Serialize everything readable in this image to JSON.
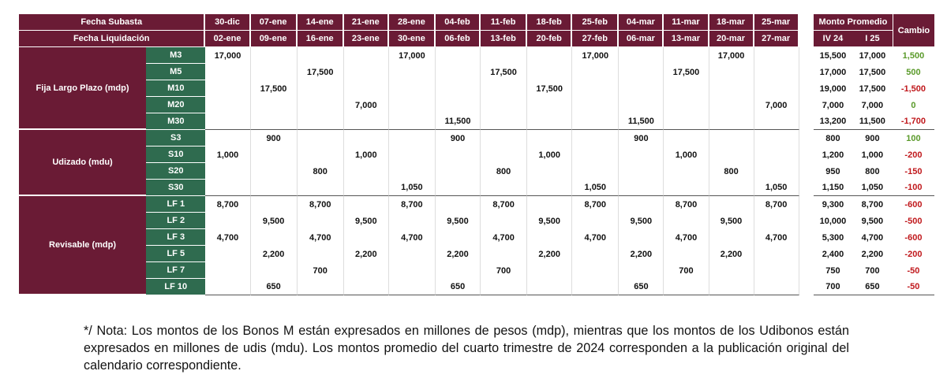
{
  "header": {
    "row1_label": "Fecha Subasta",
    "row2_label": "Fecha Liquidación",
    "auction_dates": [
      "30-dic",
      "07-ene",
      "14-ene",
      "21-ene",
      "28-ene",
      "04-feb",
      "11-feb",
      "18-feb",
      "25-feb",
      "04-mar",
      "11-mar",
      "18-mar",
      "25-mar"
    ],
    "settlement_dates": [
      "02-ene",
      "09-ene",
      "16-ene",
      "23-ene",
      "30-ene",
      "06-feb",
      "13-feb",
      "20-feb",
      "27-feb",
      "06-mar",
      "13-mar",
      "20-mar",
      "27-mar"
    ],
    "avg_label": "Monto Promedio",
    "avg_cols": [
      "IV 24",
      "I 25"
    ],
    "change_label": "Cambio"
  },
  "groups": [
    {
      "label": "Fija Largo Plazo (mdp)",
      "rows": [
        {
          "code": "M3",
          "values": [
            "17,000",
            "",
            "",
            "",
            "17,000",
            "",
            "",
            "",
            "17,000",
            "",
            "",
            "17,000",
            ""
          ],
          "avg": [
            "15,500",
            "17,000"
          ],
          "change": "1,500",
          "sign": "pos"
        },
        {
          "code": "M5",
          "values": [
            "",
            "",
            "17,500",
            "",
            "",
            "",
            "17,500",
            "",
            "",
            "",
            "17,500",
            "",
            ""
          ],
          "avg": [
            "17,000",
            "17,500"
          ],
          "change": "500",
          "sign": "pos"
        },
        {
          "code": "M10",
          "values": [
            "",
            "17,500",
            "",
            "",
            "",
            "",
            "",
            "17,500",
            "",
            "",
            "",
            "",
            ""
          ],
          "avg": [
            "19,000",
            "17,500"
          ],
          "change": "-1,500",
          "sign": "neg"
        },
        {
          "code": "M20",
          "values": [
            "",
            "",
            "",
            "7,000",
            "",
            "",
            "",
            "",
            "",
            "",
            "",
            "",
            "7,000"
          ],
          "avg": [
            "7,000",
            "7,000"
          ],
          "change": "0",
          "sign": "pos"
        },
        {
          "code": "M30",
          "values": [
            "",
            "",
            "",
            "",
            "",
            "11,500",
            "",
            "",
            "",
            "11,500",
            "",
            "",
            ""
          ],
          "avg": [
            "13,200",
            "11,500"
          ],
          "change": "-1,700",
          "sign": "neg"
        }
      ]
    },
    {
      "label": "Udizado  (mdu)",
      "rows": [
        {
          "code": "S3",
          "values": [
            "",
            "900",
            "",
            "",
            "",
            "900",
            "",
            "",
            "",
            "900",
            "",
            "",
            ""
          ],
          "avg": [
            "800",
            "900"
          ],
          "change": "100",
          "sign": "pos"
        },
        {
          "code": "S10",
          "values": [
            "1,000",
            "",
            "",
            "1,000",
            "",
            "",
            "",
            "1,000",
            "",
            "",
            "1,000",
            "",
            ""
          ],
          "avg": [
            "1,200",
            "1,000"
          ],
          "change": "-200",
          "sign": "neg"
        },
        {
          "code": "S20",
          "values": [
            "",
            "",
            "800",
            "",
            "",
            "",
            "800",
            "",
            "",
            "",
            "",
            "800",
            ""
          ],
          "avg": [
            "950",
            "800"
          ],
          "change": "-150",
          "sign": "neg"
        },
        {
          "code": "S30",
          "values": [
            "",
            "",
            "",
            "",
            "1,050",
            "",
            "",
            "",
            "1,050",
            "",
            "",
            "",
            "1,050"
          ],
          "avg": [
            "1,150",
            "1,050"
          ],
          "change": "-100",
          "sign": "neg"
        }
      ]
    },
    {
      "label": "Revisable  (mdp)",
      "rows": [
        {
          "code": "LF 1",
          "values": [
            "8,700",
            "",
            "8,700",
            "",
            "8,700",
            "",
            "8,700",
            "",
            "8,700",
            "",
            "8,700",
            "",
            "8,700"
          ],
          "avg": [
            "9,300",
            "8,700"
          ],
          "change": "-600",
          "sign": "neg"
        },
        {
          "code": "LF 2",
          "values": [
            "",
            "9,500",
            "",
            "9,500",
            "",
            "9,500",
            "",
            "9,500",
            "",
            "9,500",
            "",
            "9,500",
            ""
          ],
          "avg": [
            "10,000",
            "9,500"
          ],
          "change": "-500",
          "sign": "neg"
        },
        {
          "code": "LF 3",
          "values": [
            "4,700",
            "",
            "4,700",
            "",
            "4,700",
            "",
            "4,700",
            "",
            "4,700",
            "",
            "4,700",
            "",
            "4,700"
          ],
          "avg": [
            "5,300",
            "4,700"
          ],
          "change": "-600",
          "sign": "neg"
        },
        {
          "code": "LF 5",
          "values": [
            "",
            "2,200",
            "",
            "2,200",
            "",
            "2,200",
            "",
            "2,200",
            "",
            "2,200",
            "",
            "2,200",
            ""
          ],
          "avg": [
            "2,400",
            "2,200"
          ],
          "change": "-200",
          "sign": "neg"
        },
        {
          "code": "LF 7",
          "values": [
            "",
            "",
            "700",
            "",
            "",
            "",
            "700",
            "",
            "",
            "",
            "700",
            "",
            ""
          ],
          "avg": [
            "750",
            "700"
          ],
          "change": "-50",
          "sign": "neg"
        },
        {
          "code": "LF 10",
          "values": [
            "",
            "650",
            "",
            "",
            "",
            "650",
            "",
            "",
            "",
            "650",
            "",
            "",
            ""
          ],
          "avg": [
            "700",
            "650"
          ],
          "change": "-50",
          "sign": "neg"
        }
      ]
    }
  ],
  "note": "*/ Nota: Los montos de los Bonos M están expresados en millones de pesos (mdp), mientras que los montos de los Udibonos están expresados en millones de udis (mdu).  Los montos promedio del cuarto trimestre de 2024 corresponden a la publicación original del calendario correspondiente.",
  "colors": {
    "header_bg": "#6a1b35",
    "code_bg": "#2f6b4f",
    "positive": "#5a9a2a",
    "negative": "#c0181c"
  }
}
